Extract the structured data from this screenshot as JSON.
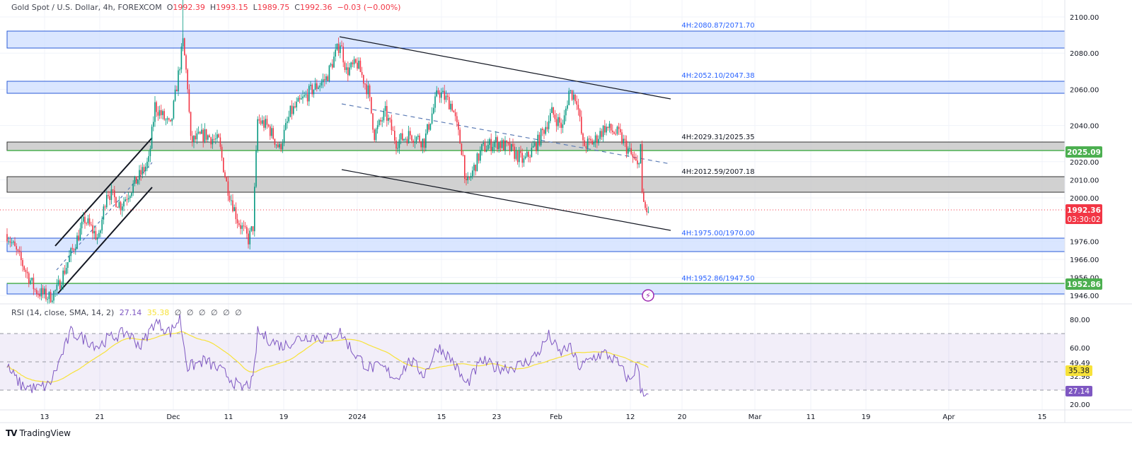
{
  "header": {
    "symbol": "Gold Spot / U.S. Dollar, 4h, FOREXCOM",
    "open_label": "O",
    "open": "1992.39",
    "high_label": "H",
    "high": "1993.15",
    "low_label": "L",
    "low": "1989.75",
    "close_label": "C",
    "close": "1992.36",
    "change": "−0.03 (−0.00%)"
  },
  "rsi_legend": {
    "title": "RSI (14, close, SMA, 14, 2)",
    "rsi": "27.14",
    "sma": "35.38",
    "extra": "∅ ∅ ∅ ∅ ∅ ∅"
  },
  "footer": {
    "brand": "TradingView",
    "logo": "TV"
  },
  "colors": {
    "up": "#089981",
    "down": "#f23645",
    "zone_blue": "#d1e0ff",
    "zone_gray": "#cccccc",
    "rsi": "#7e57c2",
    "rsi_sma": "#f7e23a",
    "support_green": "#4caf50"
  },
  "chart_data": [
    {
      "type": "candlestick",
      "title": "Gold Spot / U.S. Dollar, 4h, FOREXCOM",
      "ylim": [
        1932,
        2108
      ],
      "y_ticks": [
        "2100.00",
        "2080.00",
        "2060.00",
        "2040.00",
        "2020.00",
        "2010.00",
        "2000.00",
        "1976.00",
        "1966.00",
        "1956.00",
        "1946.00"
      ],
      "x_ticks": [
        "13",
        "21",
        "Dec",
        "11",
        "19",
        "2024",
        "15",
        "23",
        "Feb",
        "12",
        "20",
        "Mar",
        "11",
        "19",
        "Apr",
        "15"
      ],
      "close_path_bar_price": [
        [
          0,
          1980
        ],
        [
          9,
          1965
        ],
        [
          18,
          1949
        ],
        [
          27,
          1945
        ],
        [
          32,
          1949
        ],
        [
          41,
          1969
        ],
        [
          50,
          1988
        ],
        [
          59,
          1977
        ],
        [
          64,
          2004
        ],
        [
          73,
          1996
        ],
        [
          82,
          2008
        ],
        [
          91,
          2020
        ],
        [
          95,
          2051
        ],
        [
          105,
          2039
        ],
        [
          109,
          2062
        ],
        [
          113,
          2086
        ],
        [
          116,
          2062
        ],
        [
          118,
          2031
        ],
        [
          127,
          2035
        ],
        [
          136,
          2031
        ],
        [
          141,
          2008
        ],
        [
          148,
          1988
        ],
        [
          155,
          1977
        ],
        [
          158,
          1984
        ],
        [
          161,
          2043
        ],
        [
          168,
          2039
        ],
        [
          175,
          2027
        ],
        [
          182,
          2047
        ],
        [
          195,
          2059
        ],
        [
          205,
          2066
        ],
        [
          214,
          2086
        ],
        [
          218,
          2070
        ],
        [
          225,
          2074
        ],
        [
          232,
          2059
        ],
        [
          236,
          2035
        ],
        [
          243,
          2047
        ],
        [
          250,
          2031
        ],
        [
          259,
          2035
        ],
        [
          268,
          2031
        ],
        [
          277,
          2059
        ],
        [
          286,
          2051
        ],
        [
          293,
          2023
        ],
        [
          295,
          2006
        ],
        [
          305,
          2027
        ],
        [
          314,
          2031
        ],
        [
          323,
          2027
        ],
        [
          332,
          2020
        ],
        [
          341,
          2031
        ],
        [
          350,
          2047
        ],
        [
          357,
          2039
        ],
        [
          361,
          2059
        ],
        [
          366,
          2055
        ],
        [
          370,
          2029
        ],
        [
          377,
          2031
        ],
        [
          384,
          2039
        ],
        [
          393,
          2035
        ],
        [
          400,
          2025
        ],
        [
          405,
          2017
        ],
        [
          407,
          2029
        ],
        [
          408,
          2000
        ],
        [
          410,
          1994
        ],
        [
          412,
          1992.36
        ]
      ],
      "zones": [
        {
          "label": "4H:2080.87/2071.70",
          "style": "blue"
        },
        {
          "label": "4H:2052.10/2047.38",
          "style": "blue"
        },
        {
          "label": "4H:2029.31/2025.35",
          "style": "gray"
        },
        {
          "label": "4H:2012.59/2007.18",
          "style": "gray"
        },
        {
          "label": "4H:1975.00/1970.00",
          "style": "blue"
        },
        {
          "label": "4H:1952.86/1947.50",
          "style": "blue"
        }
      ],
      "price_labels": [
        {
          "value": "2025.09",
          "color": "#4caf50"
        },
        {
          "value": "1952.86",
          "color": "#4caf50"
        },
        {
          "value": "1992.36",
          "sub": "03:30:02",
          "color": "#f23645"
        }
      ]
    },
    {
      "type": "line",
      "title": "RSI (14, close, SMA, 14, 2)",
      "ylim": [
        15,
        85
      ],
      "y_ticks": [
        "80.00",
        "60.00",
        "49.49",
        "32.98",
        "20.00"
      ],
      "bands": [
        30,
        50,
        70
      ],
      "rsi_path_bar_value": [
        [
          0,
          46
        ],
        [
          9,
          33.5
        ],
        [
          18,
          31
        ],
        [
          27,
          33.5
        ],
        [
          32,
          46
        ],
        [
          41,
          71
        ],
        [
          50,
          66
        ],
        [
          59,
          61
        ],
        [
          64,
          66
        ],
        [
          77,
          71
        ],
        [
          86,
          61
        ],
        [
          95,
          78.5
        ],
        [
          105,
          71
        ],
        [
          111,
          81
        ],
        [
          116,
          46
        ],
        [
          127,
          51
        ],
        [
          141,
          41
        ],
        [
          150,
          31
        ],
        [
          158,
          36
        ],
        [
          161,
          71
        ],
        [
          168,
          66
        ],
        [
          177,
          61
        ],
        [
          186,
          66
        ],
        [
          195,
          68.5
        ],
        [
          205,
          66
        ],
        [
          214,
          71
        ],
        [
          223,
          56
        ],
        [
          232,
          46
        ],
        [
          241,
          46
        ],
        [
          250,
          38.5
        ],
        [
          259,
          51
        ],
        [
          268,
          41
        ],
        [
          277,
          61
        ],
        [
          286,
          51
        ],
        [
          295,
          33.5
        ],
        [
          305,
          51
        ],
        [
          314,
          46
        ],
        [
          323,
          46
        ],
        [
          332,
          48.5
        ],
        [
          341,
          56
        ],
        [
          348,
          68.5
        ],
        [
          355,
          56
        ],
        [
          361,
          61
        ],
        [
          368,
          46
        ],
        [
          377,
          53.5
        ],
        [
          384,
          56
        ],
        [
          391,
          51
        ],
        [
          400,
          36
        ],
        [
          405,
          48.5
        ],
        [
          407,
          31
        ],
        [
          412,
          27.14
        ]
      ],
      "price_labels": [
        {
          "value": "35.38",
          "color": "#f7e23a"
        },
        {
          "value": "27.14",
          "color": "#7e57c2"
        }
      ]
    }
  ]
}
